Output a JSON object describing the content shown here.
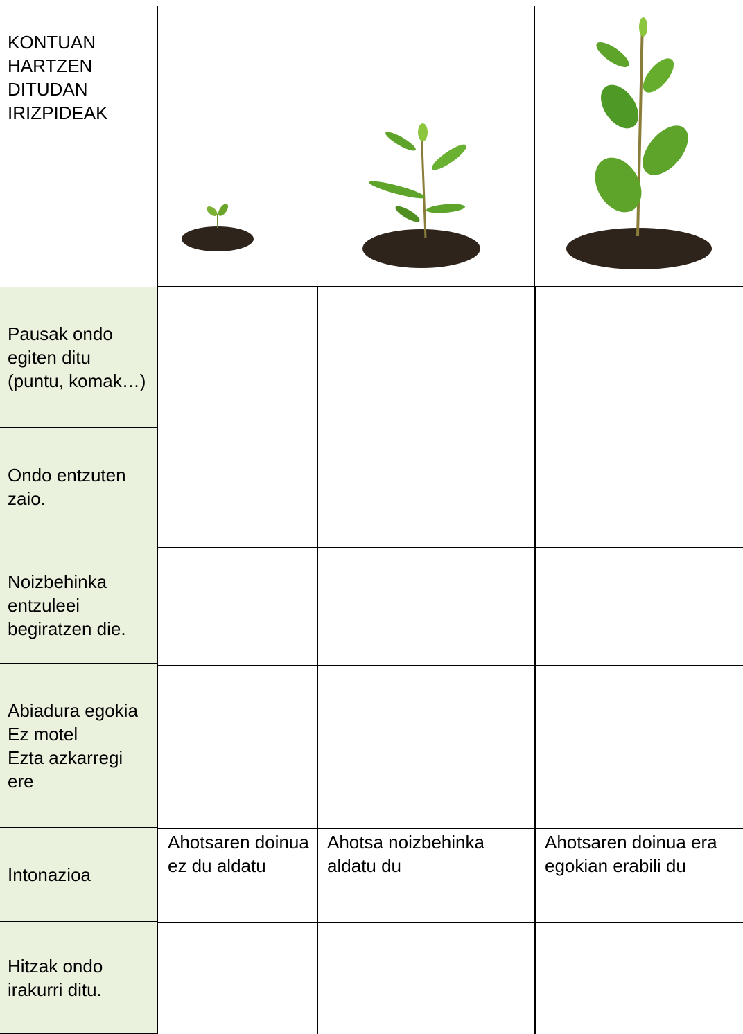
{
  "header": {
    "title": "KONTUAN HARTZEN DITUDAN IRIZPIDEAK"
  },
  "rows": [
    {
      "criterion": "Pausak ondo egiten ditu (puntu, komak…)"
    },
    {
      "criterion": "Ondo entzuten zaio."
    },
    {
      "criterion": "Noizbehinka entzuleei begiratzen die."
    },
    {
      "criterion": "Abiadura egokia\nEz motel\nEzta azkarregi ere"
    },
    {
      "criterion": "Intonazioa",
      "cells": [
        "Ahotsaren doinua ez du aldatu",
        "Ahotsa noizbehinka aldatu du",
        "Ahotsaren doinua era egokian erabili du"
      ]
    },
    {
      "criterion": "Hitzak ondo irakurri ditu."
    }
  ]
}
